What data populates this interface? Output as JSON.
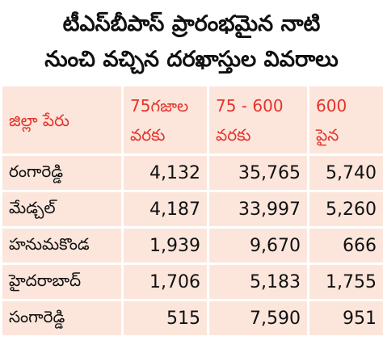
{
  "header": {
    "title_lines": [
      "టీఎస్‌బీపాస్ ప్రారంభమైన నాటి",
      "నుంచి వచ్చిన దరఖాస్తుల వివరాలు"
    ]
  },
  "table": {
    "columns": [
      [
        "జిల్లా పేరు"
      ],
      [
        "75గజాల",
        "వరకు"
      ],
      [
        "75 - 600",
        "వరకు"
      ],
      [
        "600",
        "పైన"
      ]
    ],
    "rows": [
      [
        "రంగారెడ్డి",
        "4,132",
        "35,765",
        "5,740"
      ],
      [
        "మేడ్చల్",
        "4,187",
        "33,997",
        "5,260"
      ],
      [
        "హనుమకొండ",
        "1,939",
        "9,670",
        "666"
      ],
      [
        "హైదరాబాద్",
        "1,706",
        "5,183",
        "1,755"
      ],
      [
        "సంగారెడ్డి",
        "515",
        "7,590",
        "951"
      ]
    ]
  }
}
